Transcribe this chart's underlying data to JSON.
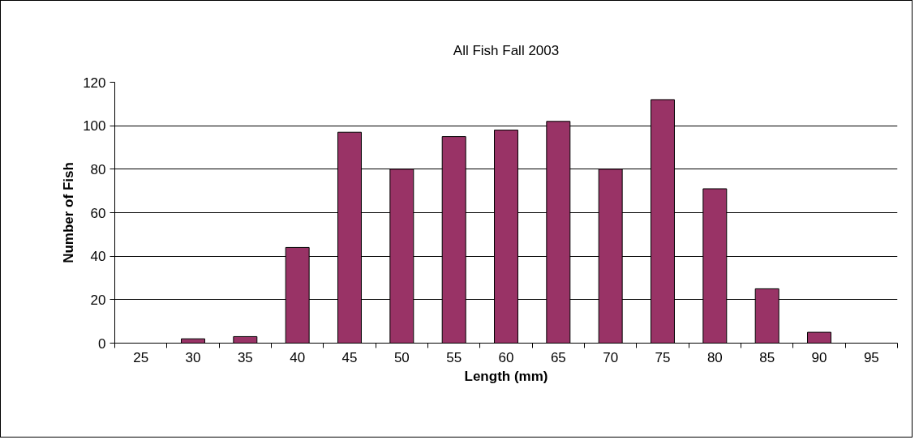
{
  "chart_data": {
    "type": "bar",
    "title": "All Fish Fall 2003",
    "xlabel": "Length (mm)",
    "ylabel": "Number of Fish",
    "categories": [
      "25",
      "30",
      "35",
      "40",
      "45",
      "50",
      "55",
      "60",
      "65",
      "70",
      "75",
      "80",
      "85",
      "90",
      "95"
    ],
    "values": [
      0,
      2,
      3,
      44,
      97,
      80,
      95,
      98,
      102,
      80,
      112,
      71,
      25,
      5,
      0
    ],
    "color": "#993366",
    "ylim": [
      0,
      120
    ],
    "yticks": [
      0,
      20,
      40,
      60,
      80,
      100,
      120
    ],
    "grid": "y"
  }
}
